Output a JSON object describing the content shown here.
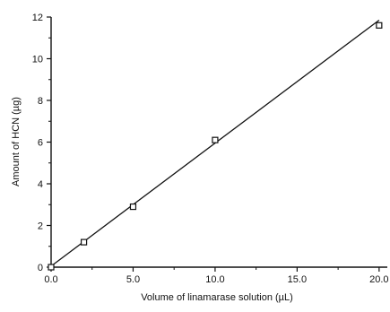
{
  "chart_data": {
    "type": "scatter",
    "title": "",
    "xlabel": "Volume of linamarase solution (µL)",
    "ylabel": "Amount of HCN (µg)",
    "xlim": [
      0,
      20.5
    ],
    "ylim": [
      0,
      12
    ],
    "x_ticks": [
      0,
      5,
      10,
      15,
      20
    ],
    "x_tick_labels": [
      "0.0",
      "5.0",
      "10.0",
      "15.0",
      "20.0"
    ],
    "y_ticks": [
      0,
      2,
      4,
      6,
      8,
      10,
      12
    ],
    "y_tick_labels": [
      "0",
      "2",
      "4",
      "6",
      "8",
      "10",
      "12"
    ],
    "grid": false,
    "marker": "open-square",
    "series": [
      {
        "points": [
          {
            "x": 0,
            "y": 0
          },
          {
            "x": 2,
            "y": 1.2
          },
          {
            "x": 5,
            "y": 2.9
          },
          {
            "x": 10,
            "y": 6.1
          },
          {
            "x": 20,
            "y": 11.6
          }
        ]
      }
    ],
    "fit_line": {
      "type": "linear",
      "x_range": [
        0,
        20
      ],
      "y_range": [
        0.05,
        11.85
      ]
    },
    "colors": {
      "axis": "#111111",
      "marker": "#111111",
      "line": "#111111"
    }
  }
}
